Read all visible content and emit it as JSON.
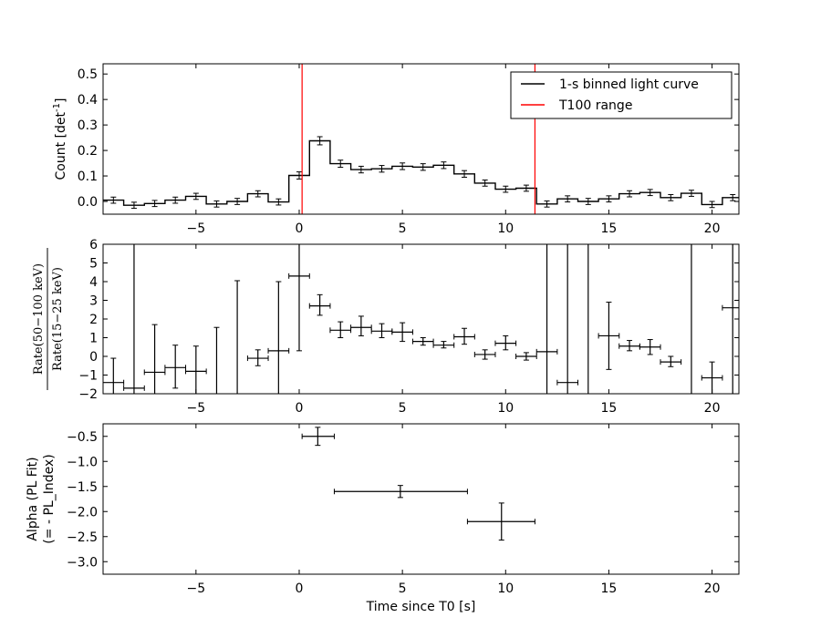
{
  "chart_data": [
    {
      "type": "line",
      "step": true,
      "ylabel": "Count [det",
      "ylabel_sup": "-1",
      "ylabel_end": "]",
      "xlim": [
        -9.5,
        21.3
      ],
      "ylim": [
        -0.05,
        0.54
      ],
      "xticks": [
        -5,
        0,
        5,
        10,
        15,
        20
      ],
      "xtick_labels": [
        "−5",
        "0",
        "5",
        "10",
        "15",
        "20"
      ],
      "yticks": [
        0.0,
        0.1,
        0.2,
        0.3,
        0.4,
        0.5
      ],
      "ytick_labels": [
        "0.0",
        "0.1",
        "0.2",
        "0.3",
        "0.4",
        "0.5"
      ],
      "legend_position": "top-right",
      "series": [
        {
          "name": "1-s binned light curve",
          "color": "#000000",
          "x": [
            -9.0,
            -8.0,
            -7.0,
            -6.0,
            -5.0,
            -4.0,
            -3.0,
            -2.0,
            -1.0,
            0.0,
            1.0,
            2.0,
            3.0,
            4.0,
            5.0,
            6.0,
            7.0,
            8.0,
            9.0,
            10.0,
            11.0,
            12.0,
            13.0,
            14.0,
            15.0,
            16.0,
            17.0,
            18.0,
            19.0,
            20.0,
            21.0
          ],
          "y": [
            0.005,
            -0.015,
            -0.008,
            0.005,
            0.02,
            -0.01,
            0.0,
            0.03,
            -0.002,
            0.102,
            0.238,
            0.148,
            0.125,
            0.128,
            0.138,
            0.135,
            0.142,
            0.108,
            0.072,
            0.048,
            0.052,
            -0.01,
            0.01,
            0.0,
            0.01,
            0.03,
            0.035,
            0.015,
            0.032,
            -0.012,
            0.015
          ],
          "yerr": [
            0.012,
            0.012,
            0.012,
            0.012,
            0.012,
            0.012,
            0.012,
            0.012,
            0.012,
            0.014,
            0.016,
            0.014,
            0.013,
            0.013,
            0.013,
            0.013,
            0.013,
            0.013,
            0.012,
            0.012,
            0.012,
            0.012,
            0.012,
            0.012,
            0.012,
            0.012,
            0.012,
            0.012,
            0.012,
            0.012,
            0.012
          ]
        },
        {
          "name": "T100 range",
          "color": "#ff0000",
          "vlines": [
            0.14,
            11.42
          ]
        }
      ]
    },
    {
      "type": "scatter",
      "ylabel": "Rate(50−100 keV) / Rate(15−25 keV)",
      "ylabel_num": "Rate(50−100 keV)",
      "ylabel_den": "Rate(15−25 keV)",
      "xlim": [
        -9.5,
        21.3
      ],
      "ylim": [
        -2,
        6
      ],
      "xticks": [
        -5,
        0,
        5,
        10,
        15,
        20
      ],
      "xtick_labels": [
        "−5",
        "0",
        "5",
        "10",
        "15",
        "20"
      ],
      "yticks": [
        -2,
        -1,
        0,
        1,
        2,
        3,
        4,
        5,
        6
      ],
      "ytick_labels": [
        "−2",
        "−1",
        "0",
        "1",
        "2",
        "3",
        "4",
        "5",
        "6"
      ],
      "points": [
        {
          "x": -9,
          "y": -1.4,
          "ylo": -2.0,
          "yhi": -0.1
        },
        {
          "x": -8,
          "y": -1.7,
          "ylo": -2.0,
          "yhi": 6.0
        },
        {
          "x": -7,
          "y": -0.85,
          "ylo": -2.0,
          "yhi": 1.7
        },
        {
          "x": -6,
          "y": -0.6,
          "ylo": -1.7,
          "yhi": 0.6
        },
        {
          "x": -5,
          "y": -0.8,
          "ylo": -2.0,
          "yhi": 0.55
        },
        {
          "x": -4,
          "y": null,
          "ylo": -2.0,
          "yhi": 1.55
        },
        {
          "x": -3,
          "y": null,
          "ylo": -2.0,
          "yhi": 4.05
        },
        {
          "x": -2,
          "y": -0.1,
          "ylo": -0.5,
          "yhi": 0.35
        },
        {
          "x": -1,
          "y": 0.3,
          "ylo": -2.0,
          "yhi": 4.0
        },
        {
          "x": 0,
          "y": 4.3,
          "ylo": 0.3,
          "yhi": 6.0
        },
        {
          "x": 1,
          "y": 2.7,
          "ylo": 2.2,
          "yhi": 3.3
        },
        {
          "x": 2,
          "y": 1.4,
          "ylo": 1.0,
          "yhi": 1.85
        },
        {
          "x": 3,
          "y": 1.55,
          "ylo": 1.1,
          "yhi": 2.15
        },
        {
          "x": 4,
          "y": 1.35,
          "ylo": 1.0,
          "yhi": 1.75
        },
        {
          "x": 5,
          "y": 1.3,
          "ylo": 0.8,
          "yhi": 1.8
        },
        {
          "x": 6,
          "y": 0.8,
          "ylo": 0.6,
          "yhi": 1.0
        },
        {
          "x": 7,
          "y": 0.6,
          "ylo": 0.45,
          "yhi": 0.8
        },
        {
          "x": 8,
          "y": 1.05,
          "ylo": 0.65,
          "yhi": 1.5
        },
        {
          "x": 9,
          "y": 0.1,
          "ylo": -0.15,
          "yhi": 0.35
        },
        {
          "x": 10,
          "y": 0.7,
          "ylo": 0.35,
          "yhi": 1.1
        },
        {
          "x": 11,
          "y": 0.0,
          "ylo": -0.2,
          "yhi": 0.2
        },
        {
          "x": 12,
          "y": 0.25,
          "ylo": -2.0,
          "yhi": 6.0
        },
        {
          "x": 13,
          "y": -1.4,
          "ylo": -2.0,
          "yhi": 6.0
        },
        {
          "x": 14,
          "y": null,
          "ylo": -2.0,
          "yhi": 6.0
        },
        {
          "x": 15,
          "y": 1.1,
          "ylo": -0.7,
          "yhi": 2.9
        },
        {
          "x": 16,
          "y": 0.55,
          "ylo": 0.3,
          "yhi": 0.85
        },
        {
          "x": 17,
          "y": 0.5,
          "ylo": 0.1,
          "yhi": 0.9
        },
        {
          "x": 18,
          "y": -0.3,
          "ylo": -0.55,
          "yhi": 0.0
        },
        {
          "x": 19,
          "y": null,
          "ylo": -2.0,
          "yhi": 6.0
        },
        {
          "x": 20,
          "y": -1.15,
          "ylo": -2.0,
          "yhi": -0.3
        },
        {
          "x": 21,
          "y": 2.6,
          "ylo": -2.0,
          "yhi": 6.0
        }
      ]
    },
    {
      "type": "scatter",
      "ylabel": "Alpha (PL Fit)",
      "ylabel2": "(= - PL_Index)",
      "xlabel": "Time since T0 [s]",
      "xlim": [
        -9.5,
        21.3
      ],
      "ylim": [
        -3.25,
        -0.25
      ],
      "xticks": [
        -5,
        0,
        5,
        10,
        15,
        20
      ],
      "xtick_labels": [
        "−5",
        "0",
        "5",
        "10",
        "15",
        "20"
      ],
      "yticks": [
        -0.5,
        -1.0,
        -1.5,
        -2.0,
        -2.5,
        -3.0
      ],
      "ytick_labels": [
        "−0.5",
        "−1.0",
        "−1.5",
        "−2.0",
        "−2.5",
        "−3.0"
      ],
      "points": [
        {
          "x": 0.9,
          "xlo": 0.14,
          "xhi": 1.7,
          "y": -0.5,
          "ylo": -0.68,
          "yhi": -0.32
        },
        {
          "x": 4.9,
          "xlo": 1.7,
          "xhi": 8.15,
          "y": -1.6,
          "ylo": -1.72,
          "yhi": -1.48
        },
        {
          "x": 9.8,
          "xlo": 8.15,
          "xhi": 11.42,
          "y": -2.2,
          "ylo": -2.57,
          "yhi": -1.83
        }
      ]
    }
  ]
}
